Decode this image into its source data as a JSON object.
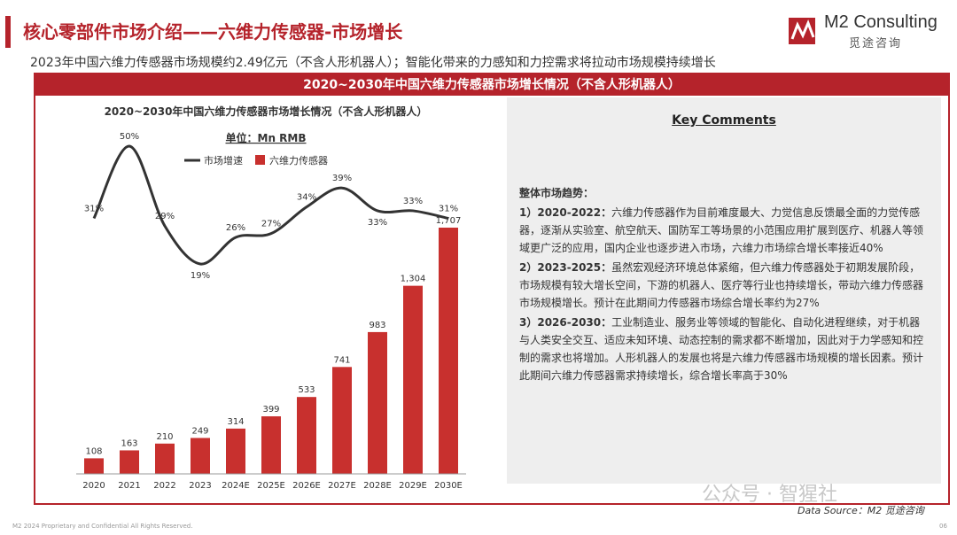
{
  "header": {
    "title": "核心零部件市场介绍——六维力传感器-市场增长",
    "subtitle": "2023年中国六维力传感器市场规模约2.49亿元（不含人形机器人）；智能化带来的力感知和力控需求将拉动市场规模持续增长",
    "accent_color": "#b5232b"
  },
  "logo": {
    "name": "M2 Consulting",
    "cn_name": "觅途咨询"
  },
  "banner": {
    "title": "2020~2030年中国六维力传感器市场增长情况（不含人形机器人）"
  },
  "chart_data": {
    "type": "bar+line",
    "title": "2020~2030年中国六维力传感器市场增长情况（不含人形机器人）",
    "unit": "单位：Mn RMB",
    "categories": [
      "2020",
      "2021",
      "2022",
      "2023",
      "2024E",
      "2025E",
      "2026E",
      "2027E",
      "2028E",
      "2029E",
      "2030E"
    ],
    "series": [
      {
        "name": "六维力传感器",
        "type": "bar",
        "color": "#c8302e",
        "values": [
          108,
          163,
          210,
          249,
          314,
          399,
          533,
          741,
          983,
          1304,
          1707
        ],
        "labels": [
          "108",
          "163",
          "210",
          "249",
          "314",
          "399",
          "533",
          "741",
          "983",
          "1,304",
          "1,707"
        ]
      },
      {
        "name": "市场增速",
        "type": "line",
        "color": "#333333",
        "values": [
          31,
          50,
          29,
          19,
          26,
          27,
          34,
          39,
          33,
          33,
          31
        ],
        "labels": [
          "31%",
          "50%",
          "29%",
          "19%",
          "26%",
          "27%",
          "34%",
          "39%",
          "33%",
          "33%",
          "31%"
        ]
      }
    ],
    "legend_placement": "top-center",
    "grid": false
  },
  "comments": {
    "title": "Key Comments",
    "heading": "整体市场趋势：",
    "items": [
      {
        "label": "1）2020-2022：",
        "text": "六维力传感器作为目前难度最大、力觉信息反馈最全面的力觉传感器，逐渐从实验室、航空航天、国防军工等场景的小范围应用扩展到医疗、机器人等领域更广泛的应用，国内企业也逐步进入市场，六维力市场综合增长率接近40%"
      },
      {
        "label": "2）2023-2025：",
        "text": "虽然宏观经济环境总体紧缩，但六维力传感器处于初期发展阶段，市场规模有较大增长空间，下游的机器人、医疗等行业也持续增长，带动六维力传感器市场规模增长。预计在此期间力传感器市场综合增长率约为27%"
      },
      {
        "label": "3）2026-2030：",
        "text": "工业制造业、服务业等领域的智能化、自动化进程继续，对于机器与人类安全交互、适应未知环境、动态控制的需求都不断增加，因此对于力学感知和控制的需求也将增加。人形机器人的发展也将是六维力传感器市场规模的增长因素。预计此期间六维力传感器需求持续增长，综合增长率高于30%"
      }
    ]
  },
  "footer": {
    "left": "M2 2024 Proprietary and Confidential All Rights Reserved.",
    "source": "Data Source：M2 觅途咨询",
    "page_number": "06",
    "watermark": "公众号 · 智猩社"
  }
}
